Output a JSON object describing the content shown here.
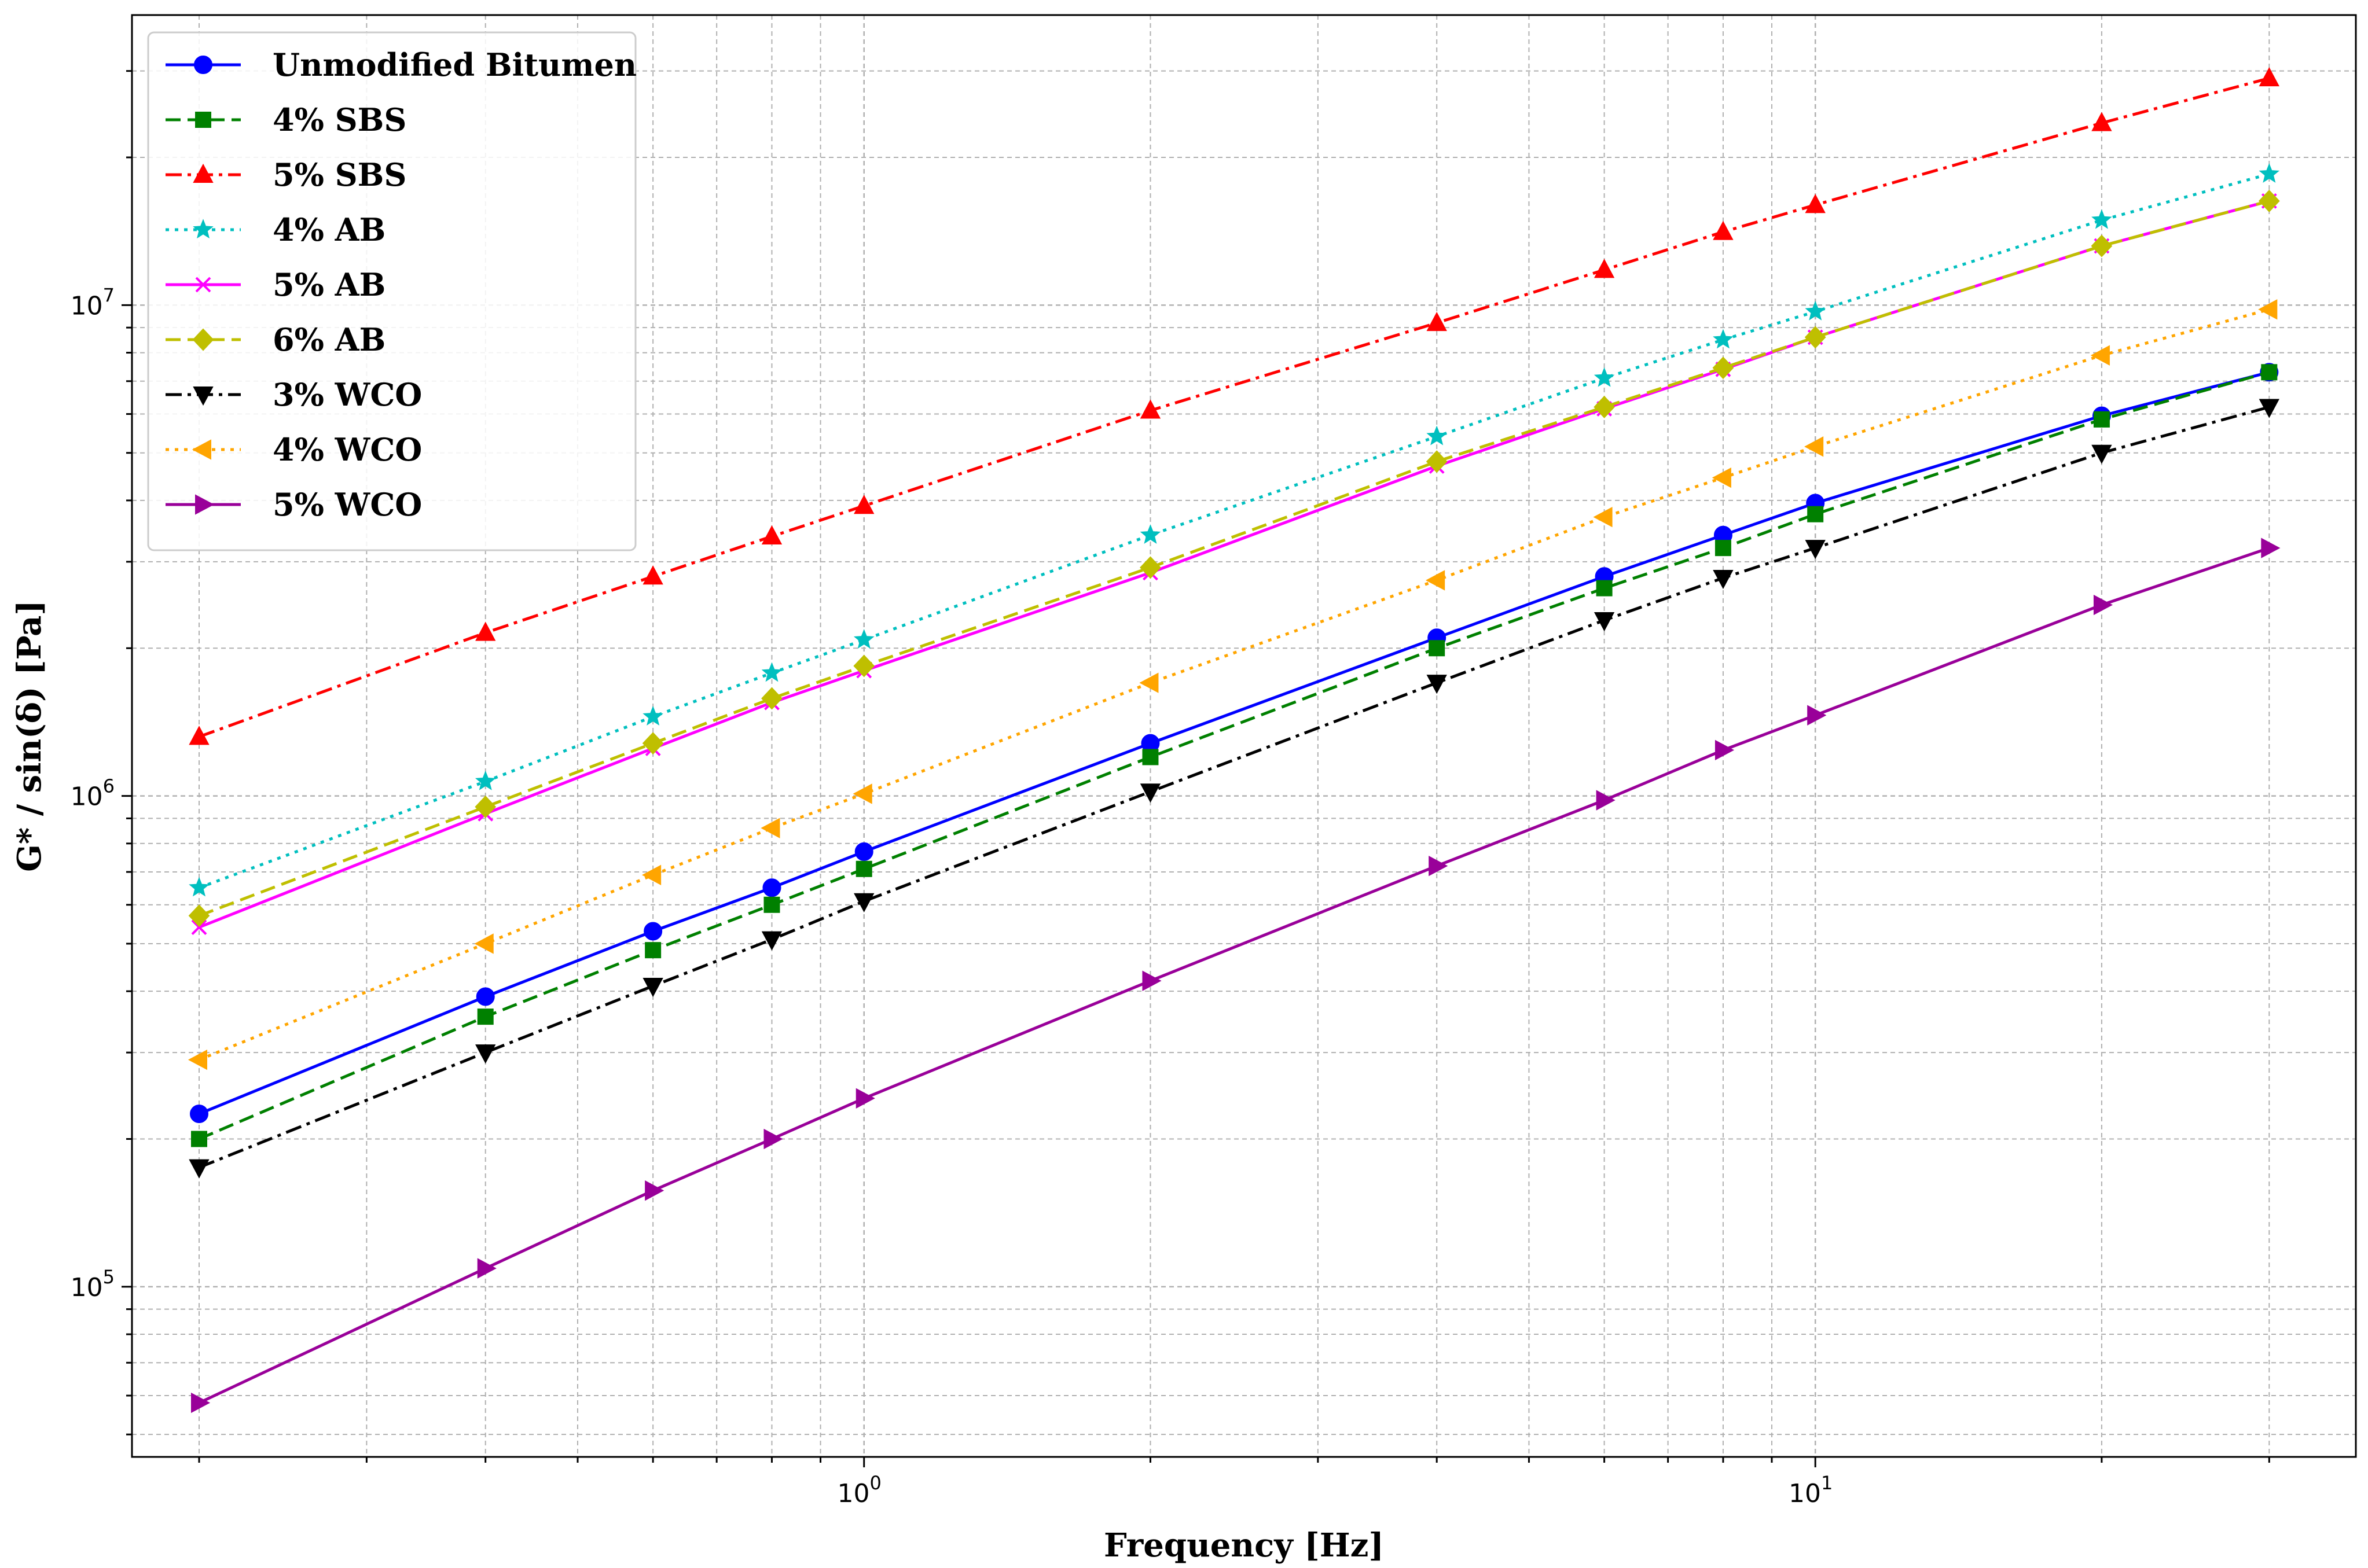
{
  "chart_data": {
    "type": "line",
    "title": "",
    "xlabel": "Frequency [Hz]",
    "ylabel": "G* / sin(δ) [Pa]",
    "x_scale": "log",
    "y_scale": "log",
    "xlim": [
      0.17,
      37
    ],
    "ylim": [
      45000,
      39000000
    ],
    "grid": true,
    "legend_position": "top-left",
    "x_ticks": [
      {
        "value": 1,
        "base": "10",
        "exp": "0"
      },
      {
        "value": 10,
        "base": "10",
        "exp": "1"
      }
    ],
    "y_ticks": [
      {
        "value": 100000,
        "base": "10",
        "exp": "5"
      },
      {
        "value": 1000000,
        "base": "10",
        "exp": "6"
      },
      {
        "value": 10000000,
        "base": "10",
        "exp": "7"
      }
    ],
    "x": [
      0.2,
      0.4,
      0.6,
      0.8,
      1,
      2,
      4,
      6,
      8,
      10,
      20,
      30
    ],
    "series": [
      {
        "name": "Unmodified Bitumen",
        "color": "#0000ff",
        "marker": "circle",
        "dash": "solid",
        "values": [
          225000,
          390000,
          530000,
          650000,
          770000,
          1280000,
          2100000,
          2800000,
          3400000,
          3950000,
          5950000,
          7300000
        ]
      },
      {
        "name": "4% SBS",
        "color": "#008000",
        "marker": "square",
        "dash": "dashed",
        "values": [
          200000,
          355000,
          485000,
          600000,
          710000,
          1200000,
          2000000,
          2650000,
          3200000,
          3750000,
          5850000,
          7300000
        ]
      },
      {
        "name": "5% SBS",
        "color": "#ff0000",
        "marker": "triangle-up",
        "dash": "dashdot",
        "values": [
          1320000,
          2150000,
          2800000,
          3380000,
          3900000,
          6100000,
          9200000,
          11800000,
          14100000,
          16000000,
          23500000,
          29000000
        ]
      },
      {
        "name": "4% AB",
        "color": "#00bfbf",
        "marker": "star",
        "dash": "dotted",
        "values": [
          650000,
          1070000,
          1450000,
          1780000,
          2080000,
          3400000,
          5400000,
          7100000,
          8500000,
          9700000,
          14900000,
          18500000
        ]
      },
      {
        "name": "5% AB",
        "color": "#ff00ff",
        "marker": "x",
        "dash": "solid",
        "values": [
          540000,
          920000,
          1250000,
          1550000,
          1800000,
          2850000,
          4700000,
          6150000,
          7400000,
          8600000,
          13200000,
          16300000
        ]
      },
      {
        "name": "6% AB",
        "color": "#bfbf00",
        "marker": "diamond",
        "dash": "dashed",
        "values": [
          570000,
          950000,
          1280000,
          1580000,
          1840000,
          2920000,
          4800000,
          6200000,
          7450000,
          8600000,
          13200000,
          16300000
        ]
      },
      {
        "name": "3% WCO",
        "color": "#000000",
        "marker": "triangle-down",
        "dash": "dashdot",
        "values": [
          175000,
          300000,
          410000,
          510000,
          610000,
          1020000,
          1700000,
          2280000,
          2780000,
          3200000,
          5000000,
          6200000
        ]
      },
      {
        "name": "4% WCO",
        "color": "#ffa500",
        "marker": "triangle-left",
        "dash": "dotted",
        "values": [
          290000,
          500000,
          690000,
          860000,
          1010000,
          1700000,
          2750000,
          3700000,
          4450000,
          5150000,
          7900000,
          9800000
        ]
      },
      {
        "name": "5% WCO",
        "color": "#990099",
        "marker": "triangle-right",
        "dash": "solid",
        "values": [
          58000,
          109000,
          157000,
          200000,
          242000,
          420000,
          720000,
          980000,
          1240000,
          1460000,
          2450000,
          3200000
        ]
      }
    ]
  }
}
